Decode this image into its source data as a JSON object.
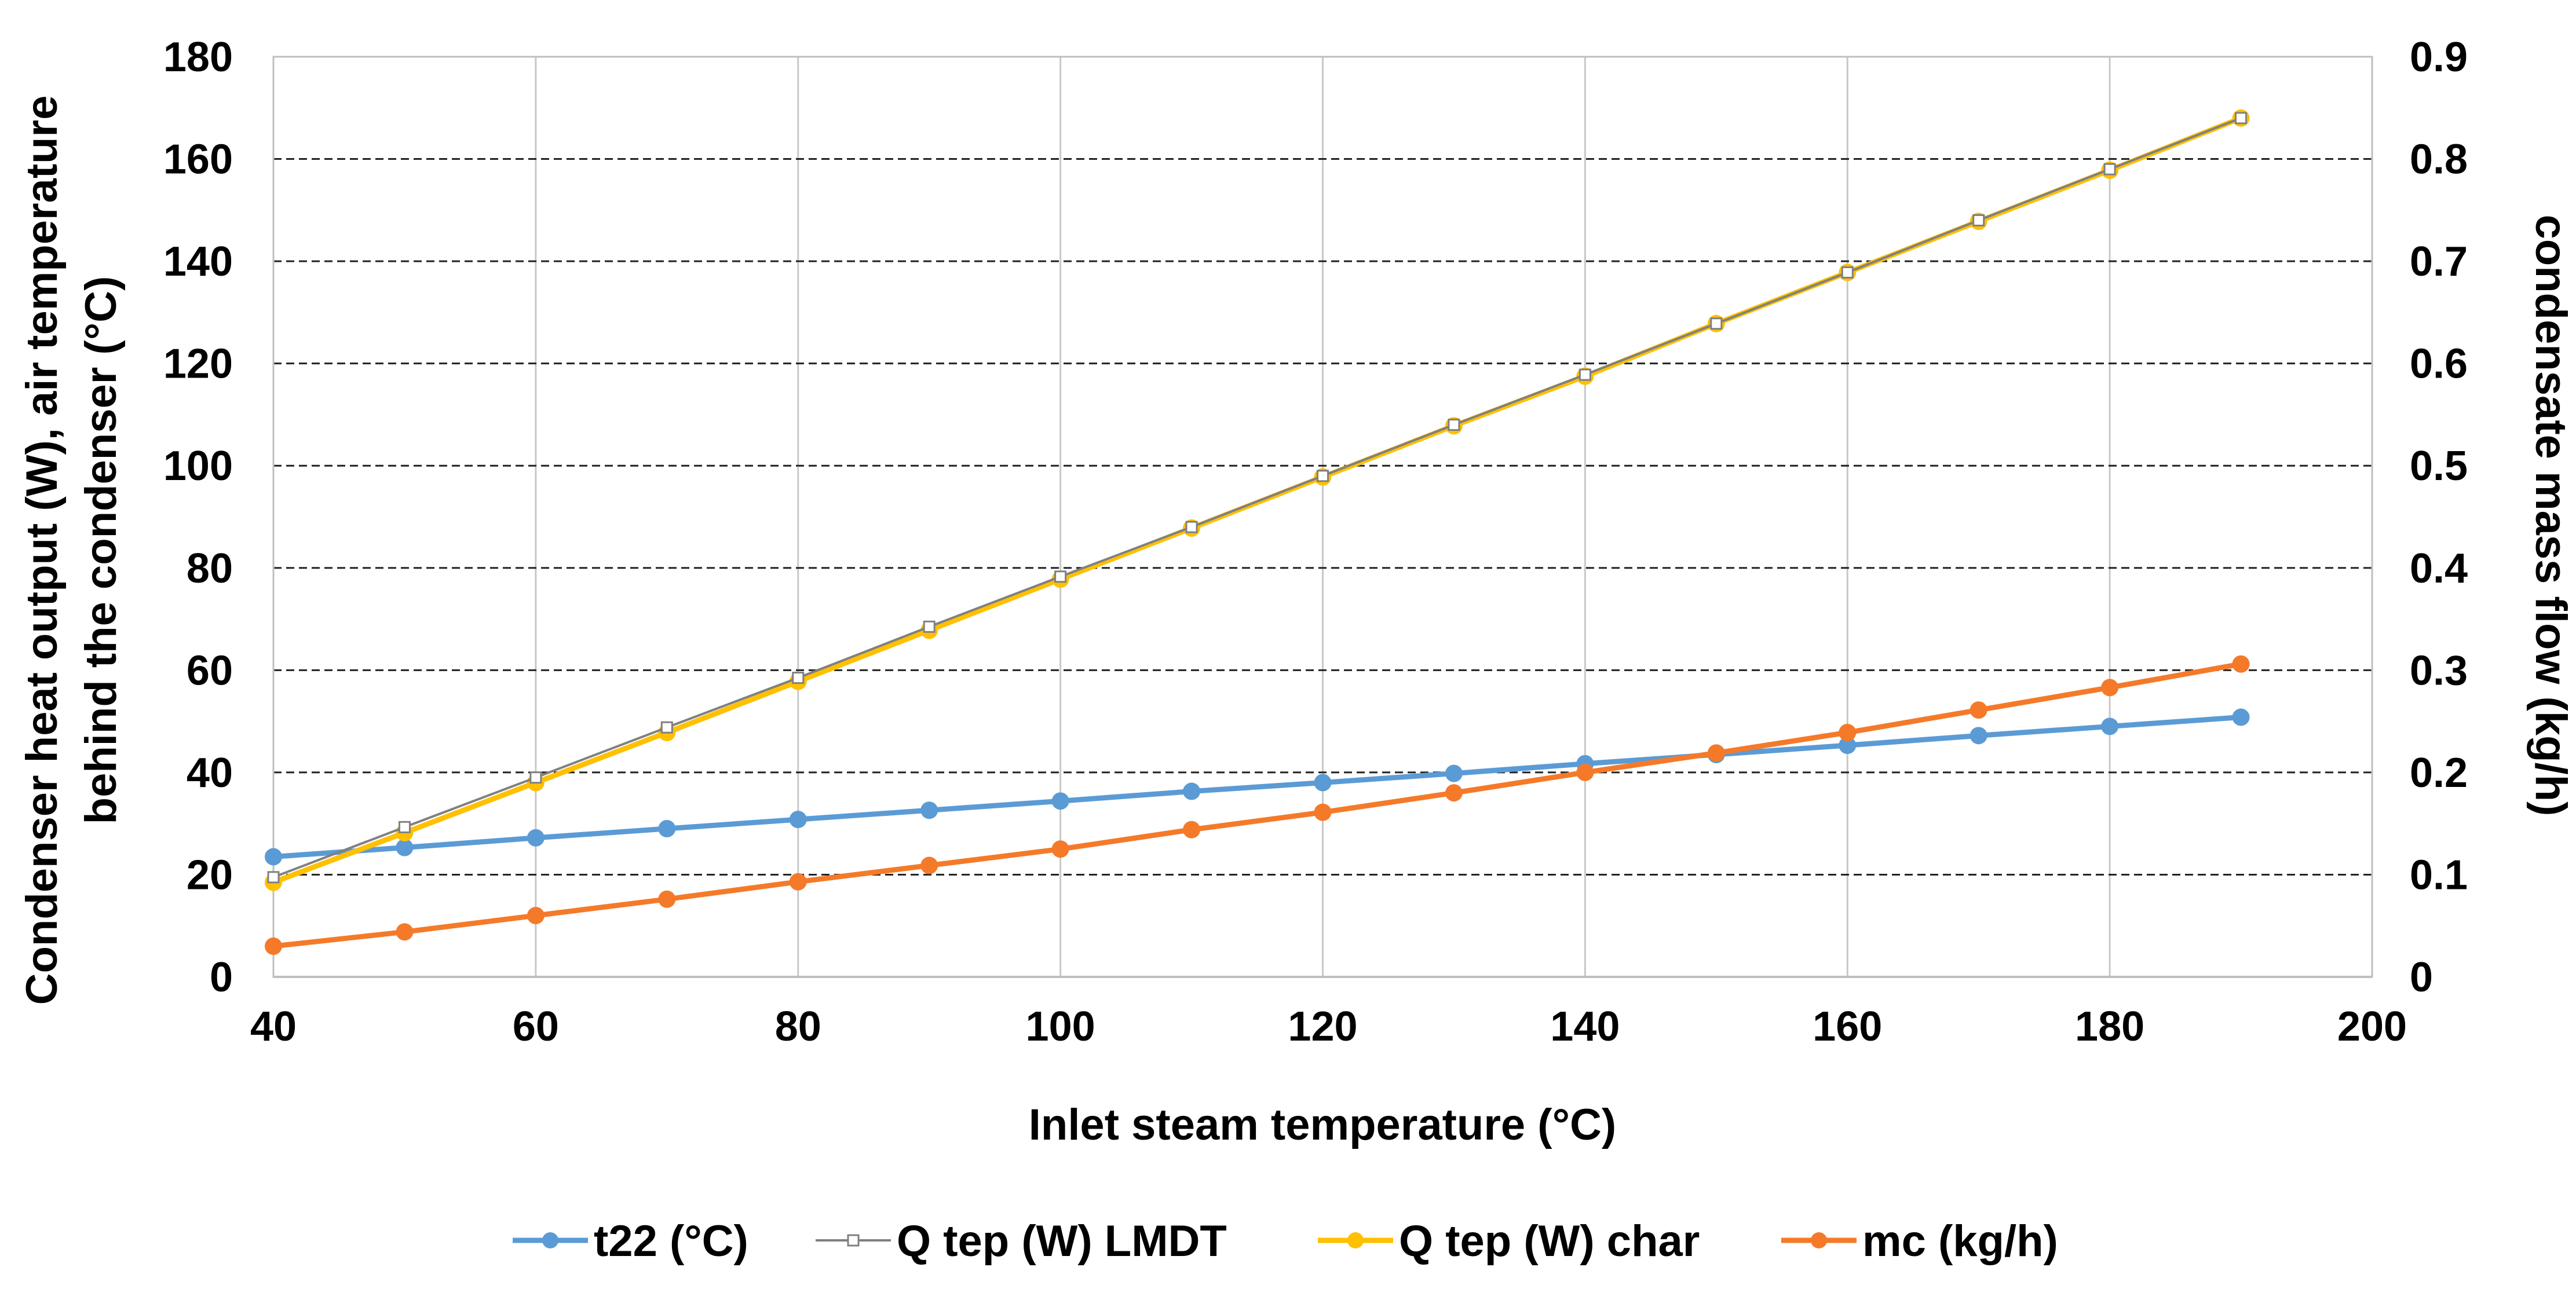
{
  "chart_data": {
    "type": "line",
    "x": [
      40,
      50,
      60,
      70,
      80,
      90,
      100,
      110,
      120,
      130,
      140,
      150,
      160,
      170,
      180,
      190
    ],
    "xlabel": "Inlet steam temperature (°C)",
    "ylabel_left_line1": "Condenser heat output (W), air temperature",
    "ylabel_left_line2": "behind the condenser (°C)",
    "ylabel_right": "condensate mass flow (kg/h)",
    "xlim": [
      40,
      200
    ],
    "ylim_left": [
      0,
      180
    ],
    "ylim_right": [
      0,
      0.9
    ],
    "x_ticks": [
      "40",
      "60",
      "80",
      "100",
      "120",
      "140",
      "160",
      "180",
      "200"
    ],
    "y_left_ticks": [
      "0",
      "20",
      "40",
      "60",
      "80",
      "100",
      "120",
      "140",
      "160",
      "180"
    ],
    "y_right_ticks": [
      "0",
      "0.1",
      "0.2",
      "0.3",
      "0.4",
      "0.5",
      "0.6",
      "0.7",
      "0.8",
      "0.9"
    ],
    "grid": true,
    "legend_position": "bottom",
    "series": [
      {
        "name": "t22 (°C)",
        "axis": "left",
        "color": "#5b9bd5",
        "marker": "circle",
        "values": [
          23.5,
          25.3,
          27.2,
          29.0,
          30.8,
          32.6,
          34.4,
          36.3,
          38.0,
          39.8,
          41.7,
          43.5,
          45.3,
          47.2,
          49.0,
          50.8
        ]
      },
      {
        "name": "Q tep (W) LMDT",
        "axis": "left",
        "color": "#808080",
        "marker": "square",
        "values": [
          19.5,
          29.3,
          39.0,
          48.8,
          58.5,
          68.5,
          78.3,
          88.0,
          98.0,
          108.0,
          117.8,
          127.8,
          137.8,
          148.0,
          158.0,
          168.0
        ]
      },
      {
        "name": "Q tep (W) char",
        "axis": "left",
        "color": "#ffc000",
        "marker": "circle",
        "values": [
          18.5,
          28.2,
          38.0,
          47.8,
          57.8,
          67.8,
          77.8,
          87.8,
          97.8,
          107.8,
          117.5,
          127.8,
          137.8,
          147.8,
          157.8,
          168.0
        ]
      },
      {
        "name": "mc (kg/h)",
        "axis": "right",
        "color": "#f47a2a",
        "marker": "circle",
        "values": [
          0.03,
          0.044,
          0.06,
          0.076,
          0.093,
          0.109,
          0.125,
          0.144,
          0.161,
          0.18,
          0.2,
          0.219,
          0.239,
          0.261,
          0.283,
          0.306
        ]
      }
    ]
  }
}
